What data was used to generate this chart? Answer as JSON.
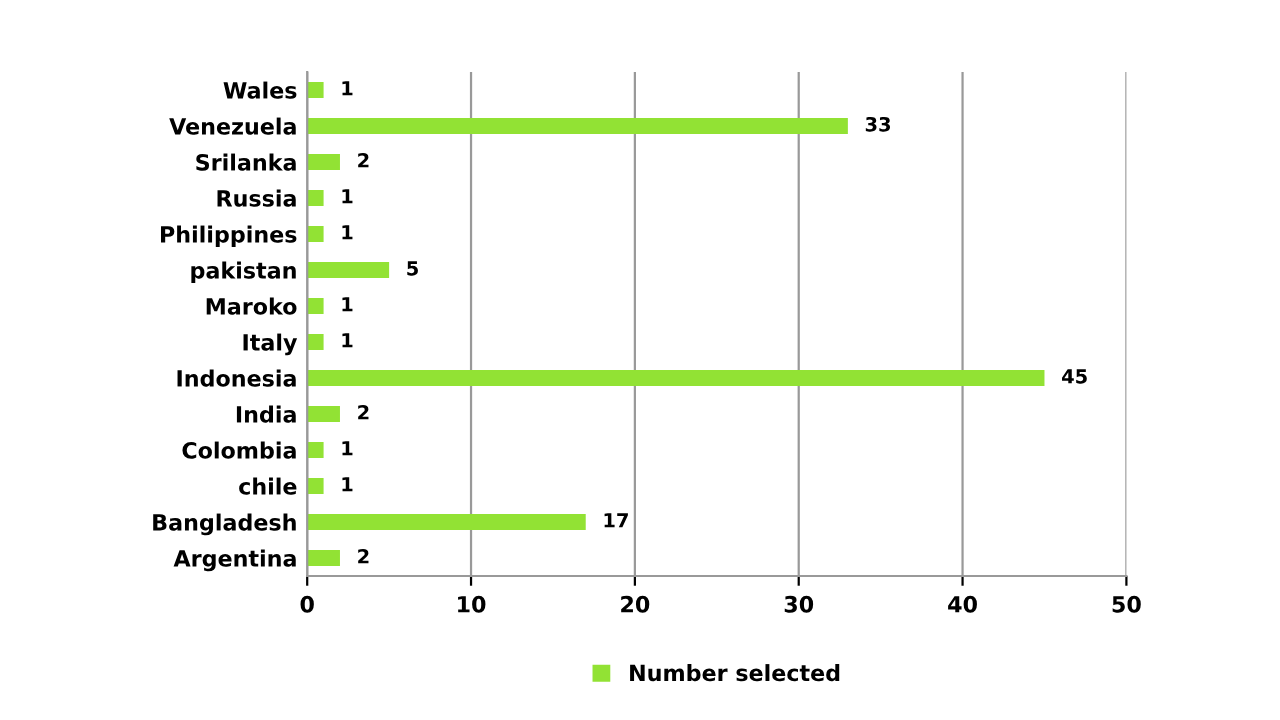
{
  "chart_data": {
    "type": "bar",
    "orientation": "horizontal",
    "categories": [
      "Wales",
      "Venezuela",
      "Srilanka",
      "Russia",
      "Philippines",
      "pakistan",
      "Maroko",
      "Italy",
      "Indonesia",
      "India",
      "Colombia",
      "chile",
      "Bangladesh",
      "Argentina"
    ],
    "series": [
      {
        "name": "Number selected",
        "color": "#92e234",
        "values": [
          1,
          33,
          2,
          1,
          1,
          5,
          1,
          1,
          45,
          2,
          1,
          1,
          17,
          2
        ]
      }
    ],
    "xlim": [
      0,
      50
    ],
    "xticks": [
      0,
      10,
      20,
      30,
      40,
      50
    ],
    "grid": "x",
    "legend": "bottom",
    "data_labels": true
  }
}
